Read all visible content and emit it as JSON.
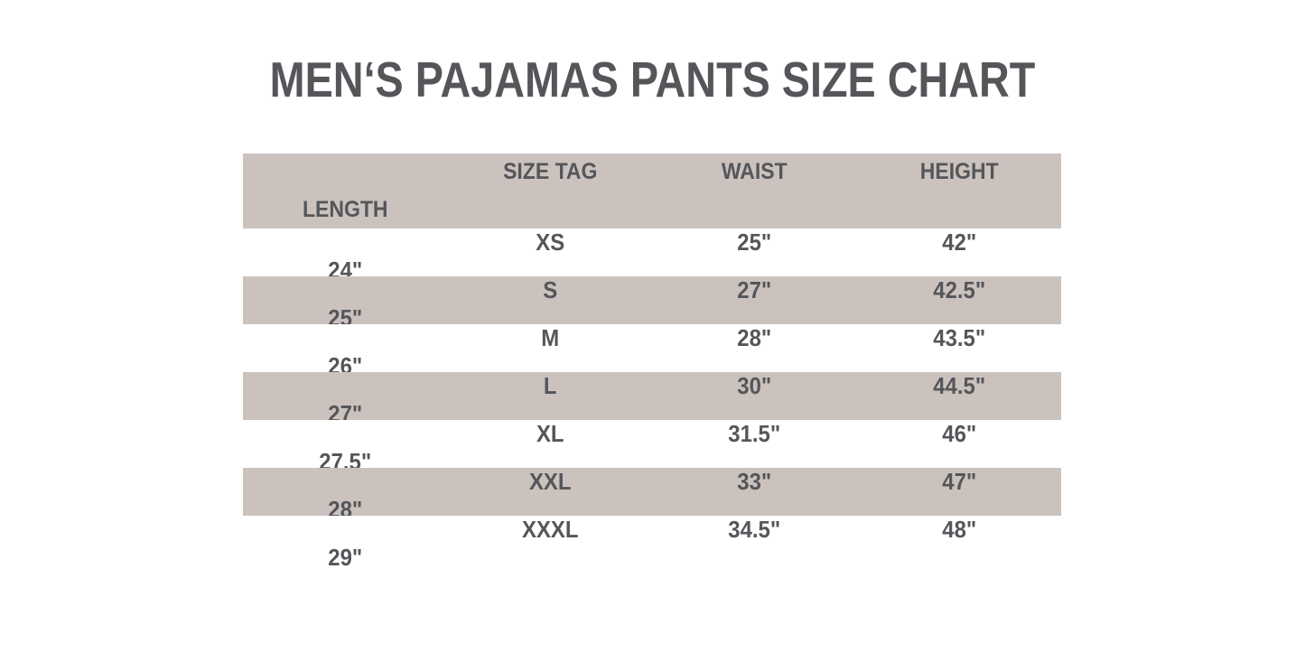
{
  "title": "MEN‘S PAJAMAS PANTS SIZE CHART",
  "colors": {
    "background": "#ffffff",
    "band": "#cbc2be",
    "text": "#55565a",
    "line": "#4b4b4b"
  },
  "chart_data": {
    "type": "table",
    "title": "MEN‘S PAJAMAS PANTS SIZE CHART",
    "columns": [
      "SIZE TAG",
      "WAIST",
      "HEIGHT",
      "LENGTH"
    ],
    "rows": [
      [
        "XS",
        "25\"",
        "42\"",
        "24\""
      ],
      [
        "S",
        "27\"",
        "42.5\"",
        "25\""
      ],
      [
        "M",
        "28\"",
        "43.5\"",
        "26\""
      ],
      [
        "L",
        "30\"",
        "44.5\"",
        "27\""
      ],
      [
        "XL",
        "31.5\"",
        "46\"",
        "27.5\""
      ],
      [
        "XXL",
        "33\"",
        "47\"",
        "28\""
      ],
      [
        "XXXL",
        "34.5\"",
        "48\"",
        "29\""
      ]
    ],
    "layout": {
      "header_background": "#cbc2be",
      "alternating_row_background": [
        "#ffffff",
        "#cbc2be"
      ],
      "column_separators": true,
      "horizontal_gridlines": false,
      "outer_border": false
    }
  }
}
